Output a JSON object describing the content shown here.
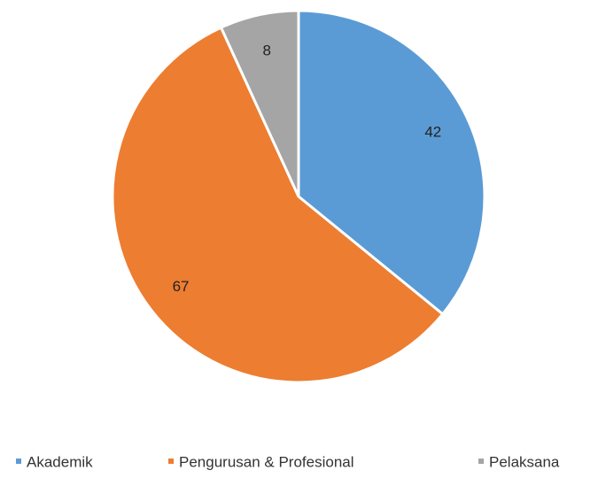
{
  "chart_data": {
    "type": "pie",
    "categories": [
      "Akademik",
      "Pengurusan & Profesional",
      "Pelaksana"
    ],
    "values": [
      42,
      67,
      8
    ],
    "colors": [
      "#5b9bd5",
      "#ed7d31",
      "#a5a5a5"
    ],
    "legend": "bottom"
  }
}
